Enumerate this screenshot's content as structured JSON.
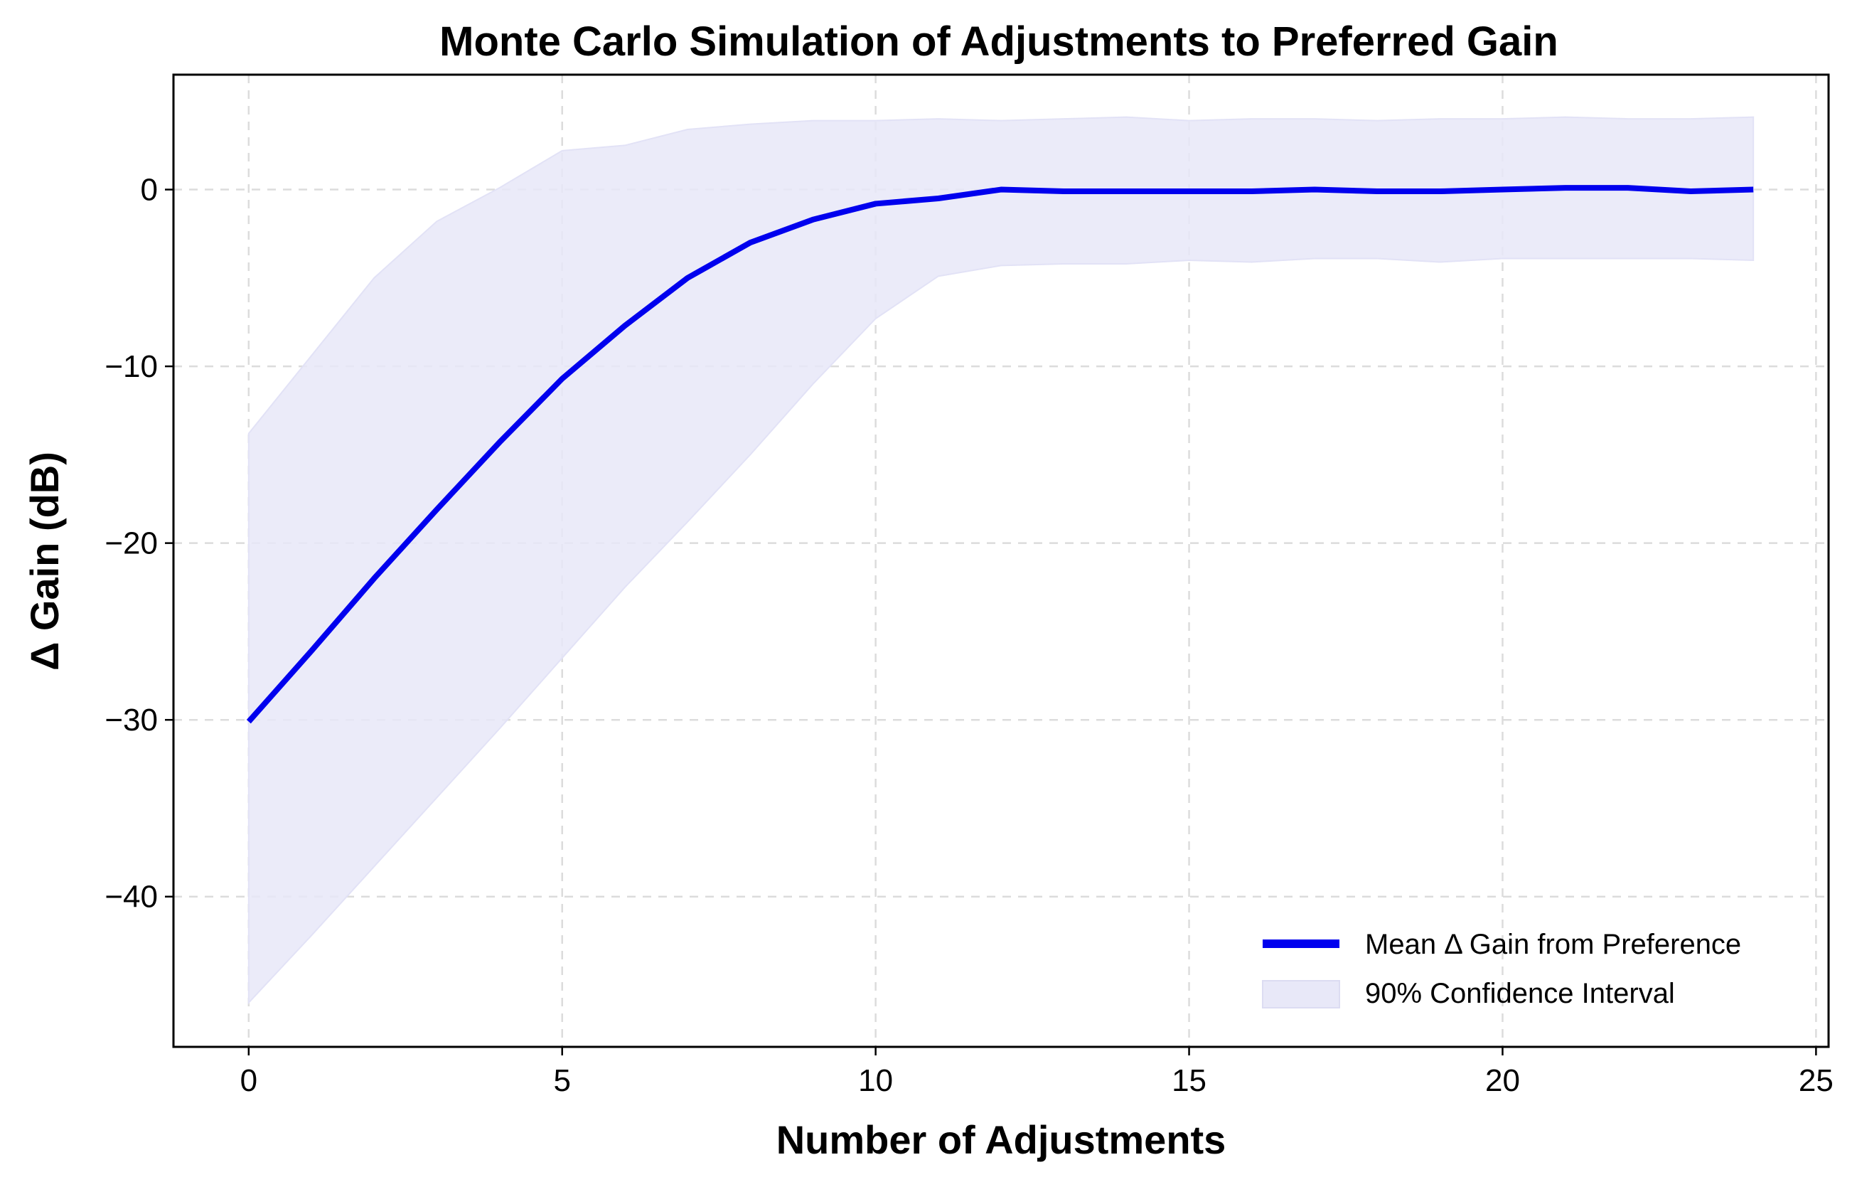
{
  "chart_data": {
    "type": "line",
    "title": "Monte Carlo Simulation of Adjustments to Preferred Gain",
    "xlabel": "Number of Adjustments",
    "ylabel": "Δ Gain (dB)",
    "xlim": [
      -1.2,
      25.2
    ],
    "ylim": [
      -48.5,
      6.5
    ],
    "xticks": [
      0,
      5,
      10,
      15,
      20,
      25
    ],
    "xtick_labels": [
      "0",
      "5",
      "10",
      "15",
      "20",
      "25"
    ],
    "yticks": [
      0,
      -10,
      -20,
      -30,
      -40
    ],
    "ytick_labels": [
      "0",
      "−10",
      "−20",
      "−30",
      "−40"
    ],
    "grid": true,
    "legend_position": "lower-right",
    "x": [
      0,
      1,
      2,
      3,
      4,
      5,
      6,
      7,
      8,
      9,
      10,
      11,
      12,
      13,
      14,
      15,
      16,
      17,
      18,
      19,
      20,
      21,
      22,
      23,
      24
    ],
    "series": [
      {
        "name": "Mean Δ Gain from Preference",
        "kind": "line",
        "color": "#0000ee",
        "values": [
          -30.1,
          -26.1,
          -22.0,
          -18.1,
          -14.3,
          -10.7,
          -7.7,
          -5.0,
          -3.0,
          -1.7,
          -0.8,
          -0.5,
          0.0,
          -0.1,
          -0.1,
          -0.1,
          -0.1,
          0.0,
          -0.1,
          -0.1,
          0.0,
          0.1,
          0.1,
          -0.1,
          0.0
        ]
      },
      {
        "name": "90% Confidence Interval",
        "kind": "band",
        "color": "#e8e8f8",
        "lower": [
          -46.0,
          -42.2,
          -38.3,
          -34.4,
          -30.5,
          -26.5,
          -22.5,
          -18.8,
          -15.0,
          -11.0,
          -7.3,
          -4.9,
          -4.3,
          -4.2,
          -4.2,
          -4.0,
          -4.1,
          -3.9,
          -3.9,
          -4.1,
          -3.9,
          -3.9,
          -3.9,
          -3.9,
          -4.0
        ],
        "upper": [
          -13.8,
          -9.4,
          -5.0,
          -1.8,
          0.1,
          2.2,
          2.5,
          3.4,
          3.7,
          3.9,
          3.9,
          4.0,
          3.9,
          4.0,
          4.1,
          3.9,
          4.0,
          4.0,
          3.9,
          4.0,
          4.0,
          4.1,
          4.0,
          4.0,
          4.1
        ]
      }
    ]
  }
}
